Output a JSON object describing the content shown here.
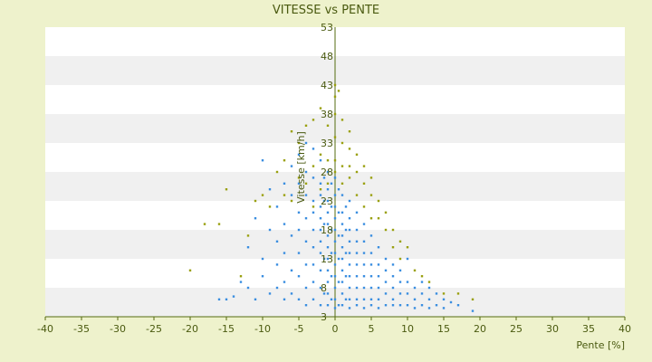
{
  "chart_data": {
    "type": "scatter",
    "title": "VITESSE vs PENTE",
    "xlabel": "Pente [%]",
    "ylabel": "Vitesse [km/h]",
    "xlim": [
      -40,
      40
    ],
    "ylim": [
      3,
      53
    ],
    "x_ticks": [
      -40,
      -35,
      -30,
      -25,
      -20,
      -15,
      -10,
      -5,
      0,
      5,
      10,
      15,
      20,
      25,
      30,
      35,
      40
    ],
    "y_ticks": [
      3,
      8,
      13,
      18,
      23,
      28,
      33,
      38,
      43,
      48,
      53
    ],
    "grid": "horizontal alternating bands",
    "legend": "none",
    "colors": {
      "background": "#eef2cc",
      "band_light": "#ffffff",
      "band_dark": "#f0f0f0",
      "series_blue": "#3a8ee0",
      "series_olive": "#9aa010",
      "text": "#4a5a10"
    },
    "series": [
      {
        "color": "#3a8ee0",
        "points": [
          [
            -16,
            6
          ],
          [
            -15,
            6
          ],
          [
            -14,
            6.5
          ],
          [
            -13,
            9
          ],
          [
            -12,
            8
          ],
          [
            -12,
            15
          ],
          [
            -11,
            20
          ],
          [
            -11,
            6
          ],
          [
            -10,
            30
          ],
          [
            -10,
            13
          ],
          [
            -10,
            10
          ],
          [
            -9,
            25
          ],
          [
            -9,
            18
          ],
          [
            -9,
            7
          ],
          [
            -8,
            22
          ],
          [
            -8,
            16
          ],
          [
            -8,
            12
          ],
          [
            -8,
            8
          ],
          [
            -7,
            26
          ],
          [
            -7,
            19
          ],
          [
            -7,
            14
          ],
          [
            -7,
            9
          ],
          [
            -7,
            6
          ],
          [
            -6,
            29
          ],
          [
            -6,
            24
          ],
          [
            -6,
            17
          ],
          [
            -6,
            11
          ],
          [
            -6,
            7
          ],
          [
            -5,
            31
          ],
          [
            -5,
            26
          ],
          [
            -5,
            21
          ],
          [
            -5,
            18
          ],
          [
            -5,
            14
          ],
          [
            -5,
            10
          ],
          [
            -5,
            6
          ],
          [
            -4,
            33
          ],
          [
            -4,
            28
          ],
          [
            -4,
            24
          ],
          [
            -4,
            20
          ],
          [
            -4,
            16
          ],
          [
            -4,
            12
          ],
          [
            -4,
            8
          ],
          [
            -4,
            5
          ],
          [
            -3,
            32
          ],
          [
            -3,
            27
          ],
          [
            -3,
            23
          ],
          [
            -3,
            21
          ],
          [
            -3,
            18
          ],
          [
            -3,
            15
          ],
          [
            -3,
            12
          ],
          [
            -3,
            9
          ],
          [
            -3,
            6
          ],
          [
            -2,
            30
          ],
          [
            -2,
            26
          ],
          [
            -2,
            24
          ],
          [
            -2,
            22
          ],
          [
            -2,
            20
          ],
          [
            -2,
            18
          ],
          [
            -2,
            16
          ],
          [
            -2,
            14
          ],
          [
            -2,
            11
          ],
          [
            -2,
            8
          ],
          [
            -2,
            5
          ],
          [
            -1.5,
            27
          ],
          [
            -1.5,
            23
          ],
          [
            -1.5,
            19
          ],
          [
            -1.5,
            13
          ],
          [
            -1.5,
            7
          ],
          [
            -1,
            28
          ],
          [
            -1,
            25
          ],
          [
            -1,
            23
          ],
          [
            -1,
            21
          ],
          [
            -1,
            19
          ],
          [
            -1,
            17
          ],
          [
            -1,
            15
          ],
          [
            -1,
            13
          ],
          [
            -1,
            11
          ],
          [
            -1,
            9
          ],
          [
            -1,
            7
          ],
          [
            -1,
            5
          ],
          [
            -0.5,
            26
          ],
          [
            -0.5,
            22
          ],
          [
            -0.5,
            18
          ],
          [
            -0.5,
            14
          ],
          [
            -0.5,
            10
          ],
          [
            -0.5,
            6
          ],
          [
            0,
            27
          ],
          [
            0,
            24
          ],
          [
            0,
            22
          ],
          [
            0,
            20
          ],
          [
            0,
            18
          ],
          [
            0,
            16
          ],
          [
            0,
            14
          ],
          [
            0,
            12
          ],
          [
            0,
            10
          ],
          [
            0,
            8
          ],
          [
            0,
            6
          ],
          [
            0,
            4.5
          ],
          [
            0.5,
            25
          ],
          [
            0.5,
            21
          ],
          [
            0.5,
            17
          ],
          [
            0.5,
            13
          ],
          [
            0.5,
            9
          ],
          [
            0.5,
            5
          ],
          [
            1,
            24
          ],
          [
            1,
            21
          ],
          [
            1,
            19
          ],
          [
            1,
            17
          ],
          [
            1,
            15
          ],
          [
            1,
            13
          ],
          [
            1,
            11
          ],
          [
            1,
            9
          ],
          [
            1,
            7
          ],
          [
            1,
            5
          ],
          [
            1.5,
            22
          ],
          [
            1.5,
            18
          ],
          [
            1.5,
            14
          ],
          [
            1.5,
            10
          ],
          [
            1.5,
            6
          ],
          [
            2,
            23
          ],
          [
            2,
            20
          ],
          [
            2,
            18
          ],
          [
            2,
            16
          ],
          [
            2,
            14
          ],
          [
            2,
            12
          ],
          [
            2,
            10
          ],
          [
            2,
            8
          ],
          [
            2,
            6
          ],
          [
            2,
            4.5
          ],
          [
            3,
            21
          ],
          [
            3,
            18
          ],
          [
            3,
            16
          ],
          [
            3,
            14
          ],
          [
            3,
            12
          ],
          [
            3,
            10
          ],
          [
            3,
            8
          ],
          [
            3,
            6
          ],
          [
            3,
            5
          ],
          [
            4,
            19
          ],
          [
            4,
            16
          ],
          [
            4,
            14
          ],
          [
            4,
            12
          ],
          [
            4,
            10
          ],
          [
            4,
            8
          ],
          [
            4,
            6
          ],
          [
            4,
            4.5
          ],
          [
            5,
            17
          ],
          [
            5,
            14
          ],
          [
            5,
            12
          ],
          [
            5,
            10
          ],
          [
            5,
            8
          ],
          [
            5,
            6
          ],
          [
            5,
            5
          ],
          [
            6,
            15
          ],
          [
            6,
            12
          ],
          [
            6,
            10
          ],
          [
            6,
            8
          ],
          [
            6,
            6
          ],
          [
            6,
            4.5
          ],
          [
            7,
            13
          ],
          [
            7,
            11
          ],
          [
            7,
            9
          ],
          [
            7,
            7
          ],
          [
            7,
            5
          ],
          [
            8,
            12
          ],
          [
            8,
            10
          ],
          [
            8,
            8
          ],
          [
            8,
            6
          ],
          [
            8,
            5
          ],
          [
            9,
            11
          ],
          [
            9,
            9
          ],
          [
            9,
            7
          ],
          [
            9,
            5
          ],
          [
            10,
            13
          ],
          [
            10,
            9
          ],
          [
            10,
            7
          ],
          [
            10,
            5
          ],
          [
            11,
            8
          ],
          [
            11,
            6
          ],
          [
            11,
            4.5
          ],
          [
            12,
            9
          ],
          [
            12,
            7
          ],
          [
            12,
            5
          ],
          [
            13,
            8
          ],
          [
            13,
            6
          ],
          [
            13,
            4.5
          ],
          [
            14,
            7
          ],
          [
            14,
            5
          ],
          [
            15,
            6
          ],
          [
            15,
            4.5
          ],
          [
            16,
            5.5
          ],
          [
            17,
            5
          ],
          [
            19,
            4
          ]
        ]
      },
      {
        "color": "#9aa010",
        "points": [
          [
            -20,
            11
          ],
          [
            -18,
            19
          ],
          [
            -16,
            19
          ],
          [
            -15,
            25
          ],
          [
            -13,
            10
          ],
          [
            -12,
            17
          ],
          [
            -11,
            23
          ],
          [
            -10,
            24
          ],
          [
            -9,
            22
          ],
          [
            -8,
            28
          ],
          [
            -7,
            24
          ],
          [
            -7,
            30
          ],
          [
            -6,
            23
          ],
          [
            -6,
            35
          ],
          [
            -5,
            27
          ],
          [
            -5,
            33
          ],
          [
            -4,
            36
          ],
          [
            -4,
            26
          ],
          [
            -3,
            37
          ],
          [
            -3,
            29
          ],
          [
            -3,
            22
          ],
          [
            -2,
            39
          ],
          [
            -2,
            31
          ],
          [
            -2,
            25
          ],
          [
            -1,
            36
          ],
          [
            -1,
            30
          ],
          [
            -1,
            26
          ],
          [
            0,
            43
          ],
          [
            0,
            41
          ],
          [
            0,
            38
          ],
          [
            0,
            34
          ],
          [
            0,
            30
          ],
          [
            0,
            28
          ],
          [
            0.5,
            42
          ],
          [
            1,
            37
          ],
          [
            1,
            33
          ],
          [
            1,
            29
          ],
          [
            1,
            26
          ],
          [
            2,
            35
          ],
          [
            2,
            32
          ],
          [
            2,
            29
          ],
          [
            2,
            27
          ],
          [
            3,
            31
          ],
          [
            3,
            28
          ],
          [
            3,
            24
          ],
          [
            4,
            29
          ],
          [
            4,
            26
          ],
          [
            4,
            22
          ],
          [
            5,
            27
          ],
          [
            5,
            24
          ],
          [
            5,
            20
          ],
          [
            6,
            23
          ],
          [
            6,
            20
          ],
          [
            7,
            21
          ],
          [
            7,
            18
          ],
          [
            8,
            18
          ],
          [
            8,
            15
          ],
          [
            9,
            16
          ],
          [
            9,
            13
          ],
          [
            10,
            15
          ],
          [
            11,
            11
          ],
          [
            12,
            10
          ],
          [
            13,
            9
          ],
          [
            15,
            7
          ],
          [
            17,
            7
          ],
          [
            19,
            6
          ]
        ]
      }
    ]
  }
}
